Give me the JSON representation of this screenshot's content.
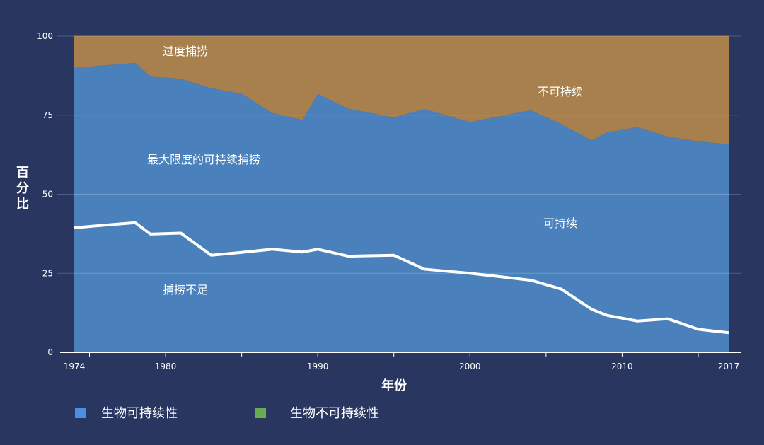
{
  "chart_data": {
    "type": "area",
    "xlabel": "年份",
    "ylabel": "百分比",
    "xlim": [
      1974,
      2017
    ],
    "ylim": [
      0,
      100
    ],
    "x_ticks": [
      1974,
      1980,
      1990,
      2000,
      2010,
      2017
    ],
    "y_ticks": [
      0,
      25,
      50,
      75,
      100
    ],
    "grid": true,
    "x": [
      1974,
      1978,
      1979,
      1981,
      1983,
      1985,
      1987,
      1989,
      1990,
      1992,
      1995,
      1997,
      2000,
      2002,
      2004,
      2006,
      2008,
      2009,
      2011,
      2013,
      2015,
      2017
    ],
    "series": [
      {
        "name": "生物可持续性",
        "color": "#4a80bb",
        "values": [
          90.0,
          91.5,
          87.2,
          86.5,
          83.5,
          81.8,
          75.7,
          73.5,
          81.7,
          77.0,
          74.3,
          76.9,
          72.8,
          74.7,
          76.5,
          72.2,
          67.0,
          69.5,
          71.2,
          68.2,
          66.7,
          65.8
        ]
      },
      {
        "name": "生物不可持续性",
        "color": "#a8804e",
        "values": [
          10.0,
          8.5,
          12.8,
          13.5,
          16.5,
          18.2,
          24.3,
          26.5,
          18.3,
          23.0,
          25.7,
          23.1,
          27.2,
          25.3,
          23.5,
          27.8,
          33.0,
          30.5,
          28.8,
          31.8,
          33.3,
          34.2
        ]
      },
      {
        "name": "捕捞不足",
        "color": "#ffffff",
        "values": [
          39.4,
          41.0,
          37.4,
          37.7,
          30.7,
          31.6,
          32.6,
          31.7,
          32.6,
          30.4,
          30.7,
          26.3,
          25.0,
          23.9,
          22.8,
          20.0,
          13.6,
          11.7,
          9.9,
          10.6,
          7.3,
          6.2
        ]
      }
    ],
    "annotations": [
      "过度捕捞",
      "不可持续",
      "最大限度的可持续捕捞",
      "可持续",
      "捕捞不足"
    ],
    "legend": {
      "position": "bottom-left",
      "items": [
        {
          "label": "生物可持续性",
          "color": "#4a90e2"
        },
        {
          "label": "生物不可持续性",
          "color": "#6aaa55"
        }
      ]
    }
  }
}
